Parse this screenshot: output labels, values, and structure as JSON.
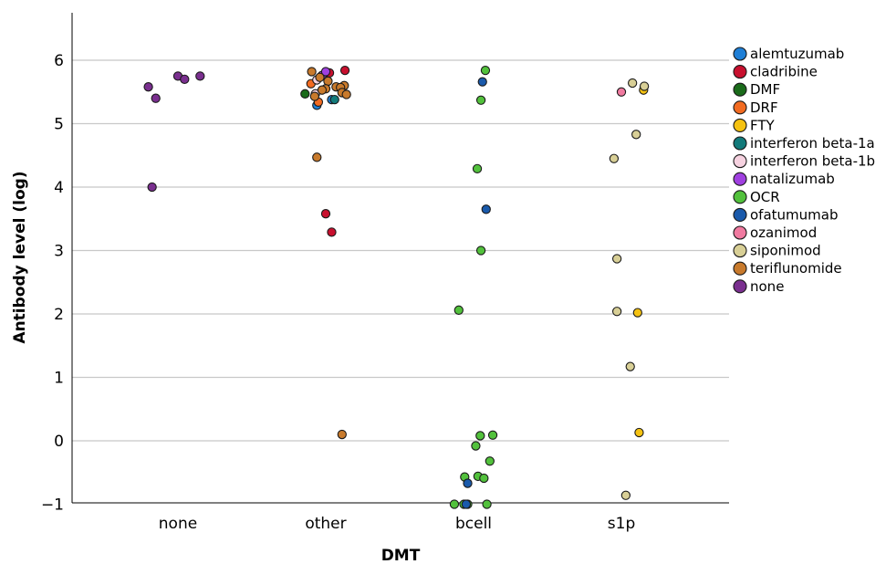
{
  "chart_data": {
    "type": "scatter",
    "title": "",
    "xlabel": "DMT",
    "ylabel": "Antibody level (log)",
    "categories": [
      "none",
      "other",
      "bcell",
      "s1p"
    ],
    "ylim": [
      -1,
      6.8
    ],
    "yticks": [
      -1,
      0,
      1,
      2,
      3,
      4,
      5,
      6
    ],
    "ytick_labels": [
      "−1",
      "0",
      "1",
      "2",
      "3",
      "4",
      "5",
      "6"
    ],
    "grid": "horizontal",
    "legend_position": "right",
    "series": [
      {
        "name": "alemtuzumab",
        "color": "#1f7fd6",
        "points": [
          {
            "x": "other",
            "offset": 0.08,
            "y": 5.38
          },
          {
            "x": "other",
            "offset": -0.12,
            "y": 5.29
          }
        ]
      },
      {
        "name": "cladribine",
        "color": "#c8102e",
        "points": [
          {
            "x": "other",
            "offset": 0.26,
            "y": 5.84
          },
          {
            "x": "other",
            "offset": 0.05,
            "y": 5.8
          },
          {
            "x": "other",
            "offset": 0.0,
            "y": 3.58
          },
          {
            "x": "other",
            "offset": 0.08,
            "y": 3.29
          }
        ]
      },
      {
        "name": "DMF",
        "color": "#1a6b1a",
        "points": [
          {
            "x": "other",
            "offset": -0.28,
            "y": 5.47
          }
        ]
      },
      {
        "name": "DRF",
        "color": "#f26b21",
        "points": [
          {
            "x": "other",
            "offset": -0.2,
            "y": 5.63
          },
          {
            "x": "other",
            "offset": -0.1,
            "y": 5.34
          }
        ]
      },
      {
        "name": "FTY",
        "color": "#f5c211",
        "points": [
          {
            "x": "s1p",
            "offset": 0.3,
            "y": 5.53
          },
          {
            "x": "s1p",
            "offset": 0.22,
            "y": 2.02
          },
          {
            "x": "s1p",
            "offset": 0.24,
            "y": 0.13
          }
        ]
      },
      {
        "name": "interferon beta-1a",
        "color": "#127a7a",
        "points": [
          {
            "x": "other",
            "offset": 0.12,
            "y": 5.38
          }
        ]
      },
      {
        "name": "interferon beta-1b",
        "color": "#f6d2e0",
        "points": [
          {
            "x": "other",
            "offset": -0.12,
            "y": 5.69
          },
          {
            "x": "other",
            "offset": -0.14,
            "y": 5.47
          }
        ]
      },
      {
        "name": "natalizumab",
        "color": "#a040e0",
        "points": [
          {
            "x": "other",
            "offset": -0.05,
            "y": 5.76
          },
          {
            "x": "other",
            "offset": 0.0,
            "y": 5.82
          }
        ]
      },
      {
        "name": "OCR",
        "color": "#52c13c",
        "points": [
          {
            "x": "bcell",
            "offset": 0.16,
            "y": 5.84
          },
          {
            "x": "bcell",
            "offset": 0.1,
            "y": 5.37
          },
          {
            "x": "bcell",
            "offset": 0.05,
            "y": 4.29
          },
          {
            "x": "bcell",
            "offset": 0.1,
            "y": 3.0
          },
          {
            "x": "bcell",
            "offset": -0.2,
            "y": 2.06
          },
          {
            "x": "bcell",
            "offset": 0.09,
            "y": 0.08
          },
          {
            "x": "bcell",
            "offset": 0.26,
            "y": 0.09
          },
          {
            "x": "bcell",
            "offset": 0.03,
            "y": -0.08
          },
          {
            "x": "bcell",
            "offset": 0.22,
            "y": -0.32
          },
          {
            "x": "bcell",
            "offset": -0.12,
            "y": -0.57
          },
          {
            "x": "bcell",
            "offset": 0.06,
            "y": -0.56
          },
          {
            "x": "bcell",
            "offset": 0.14,
            "y": -0.59
          },
          {
            "x": "bcell",
            "offset": -0.26,
            "y": -1.0
          },
          {
            "x": "bcell",
            "offset": -0.13,
            "y": -1.0
          },
          {
            "x": "bcell",
            "offset": -0.08,
            "y": -1.0
          },
          {
            "x": "bcell",
            "offset": 0.18,
            "y": -1.0
          }
        ]
      },
      {
        "name": "ofatumumab",
        "color": "#1a5aab",
        "points": [
          {
            "x": "bcell",
            "offset": 0.12,
            "y": 5.66
          },
          {
            "x": "bcell",
            "offset": 0.17,
            "y": 3.65
          },
          {
            "x": "bcell",
            "offset": -0.08,
            "y": -0.67
          },
          {
            "x": "bcell",
            "offset": -0.1,
            "y": -1.0
          }
        ]
      },
      {
        "name": "ozanimod",
        "color": "#f07aa0",
        "points": [
          {
            "x": "s1p",
            "offset": 0.0,
            "y": 5.5
          }
        ]
      },
      {
        "name": "siponimod",
        "color": "#d8cf96",
        "points": [
          {
            "x": "s1p",
            "offset": 0.15,
            "y": 5.64
          },
          {
            "x": "s1p",
            "offset": 0.31,
            "y": 5.59
          },
          {
            "x": "s1p",
            "offset": 0.2,
            "y": 4.83
          },
          {
            "x": "s1p",
            "offset": -0.1,
            "y": 4.45
          },
          {
            "x": "s1p",
            "offset": -0.06,
            "y": 2.87
          },
          {
            "x": "s1p",
            "offset": -0.06,
            "y": 2.04
          },
          {
            "x": "s1p",
            "offset": 0.12,
            "y": 1.17
          },
          {
            "x": "s1p",
            "offset": 0.06,
            "y": -0.86
          }
        ]
      },
      {
        "name": "teriflunomide",
        "color": "#c87a2c",
        "points": [
          {
            "x": "other",
            "offset": -0.19,
            "y": 5.82
          },
          {
            "x": "other",
            "offset": -0.08,
            "y": 5.73
          },
          {
            "x": "other",
            "offset": 0.03,
            "y": 5.67
          },
          {
            "x": "other",
            "offset": 0.14,
            "y": 5.58
          },
          {
            "x": "other",
            "offset": 0.25,
            "y": 5.6
          },
          {
            "x": "other",
            "offset": 0.2,
            "y": 5.57
          },
          {
            "x": "other",
            "offset": 0.0,
            "y": 5.55
          },
          {
            "x": "other",
            "offset": -0.05,
            "y": 5.53
          },
          {
            "x": "other",
            "offset": 0.22,
            "y": 5.49
          },
          {
            "x": "other",
            "offset": 0.28,
            "y": 5.46
          },
          {
            "x": "other",
            "offset": -0.15,
            "y": 5.43
          },
          {
            "x": "other",
            "offset": -0.12,
            "y": 4.47
          },
          {
            "x": "other",
            "offset": 0.22,
            "y": 0.1
          }
        ]
      },
      {
        "name": "none",
        "color": "#7a2f8f",
        "points": [
          {
            "x": "none",
            "offset": -0.4,
            "y": 5.58
          },
          {
            "x": "none",
            "offset": -0.3,
            "y": 5.4
          },
          {
            "x": "none",
            "offset": 0.0,
            "y": 5.75
          },
          {
            "x": "none",
            "offset": 0.09,
            "y": 5.7
          },
          {
            "x": "none",
            "offset": 0.3,
            "y": 5.75
          },
          {
            "x": "none",
            "offset": -0.35,
            "y": 4.0
          }
        ]
      }
    ]
  }
}
